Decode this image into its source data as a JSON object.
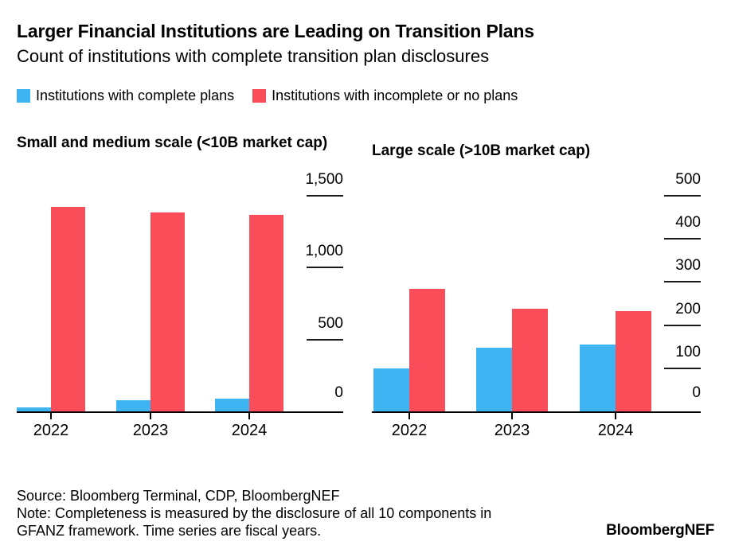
{
  "header": {
    "title": "Larger Financial Institutions are Leading on Transition Plans",
    "subtitle": "Count of institutions with complete transition plan disclosures"
  },
  "colors": {
    "complete_blue": "#3EB5F2",
    "incomplete_red": "#FA4D5A",
    "axis_black": "#000000"
  },
  "legend": {
    "items": [
      {
        "label": "Institutions with complete plans",
        "color": "complete_blue"
      },
      {
        "label": "Institutions with incomplete or no plans",
        "color": "incomplete_red"
      }
    ]
  },
  "chart_data": [
    {
      "type": "bar",
      "title": "Small and medium scale (<10B market cap)",
      "categories": [
        "2022",
        "2023",
        "2024"
      ],
      "series": [
        {
          "name": "Institutions with complete plans",
          "color": "complete_blue",
          "values": [
            30,
            75,
            90
          ]
        },
        {
          "name": "Institutions with incomplete or no plans",
          "color": "incomplete_red",
          "values": [
            1420,
            1385,
            1365
          ]
        }
      ],
      "xlabel": "",
      "ylabel": "",
      "ylim": [
        0,
        1500
      ],
      "yticks": [
        0,
        500,
        1000,
        1500
      ],
      "grid": false,
      "axis_side": "right",
      "legend_position": "top"
    },
    {
      "type": "bar",
      "title": "Large scale (>10B market cap)",
      "categories": [
        "2022",
        "2023",
        "2024"
      ],
      "series": [
        {
          "name": "Institutions with complete plans",
          "color": "complete_blue",
          "values": [
            100,
            148,
            155
          ]
        },
        {
          "name": "Institutions with incomplete or no plans",
          "color": "incomplete_red",
          "values": [
            285,
            238,
            232
          ]
        }
      ],
      "xlabel": "",
      "ylabel": "",
      "ylim": [
        0,
        500
      ],
      "yticks": [
        0,
        100,
        200,
        300,
        400,
        500
      ],
      "grid": false,
      "axis_side": "right",
      "legend_position": "top"
    }
  ],
  "footer": {
    "source": "Source: Bloomberg Terminal, CDP, BloombergNEF",
    "note": "Note: Completeness is measured by the disclosure of all 10 components in GFANZ framework. Time series are fiscal years.",
    "logo": "BloombergNEF"
  }
}
